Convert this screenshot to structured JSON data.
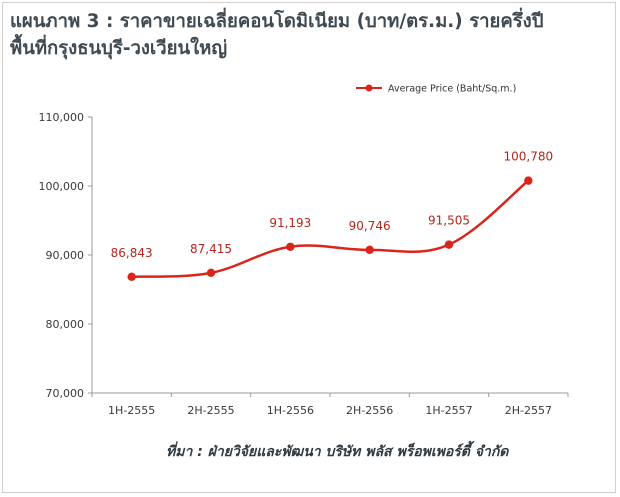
{
  "title_line1": "แผนภาพ 3 : ราคาขายเฉลี่ยคอนโดมิเนียม (บาท/ตร.ม.) รายครึ่งปี",
  "title_line2": "พื้นที่กรุงธนบุรี-วงเวียนใหญ่",
  "source": "ที่มา : ฝ่ายวิจัยและพัฒนา บริษัท พลัส พร็อพเพอร์ตี้ จำกัด",
  "chart_data": {
    "type": "line",
    "categories": [
      "1H-2555",
      "2H-2555",
      "1H-2556",
      "2H-2556",
      "1H-2557",
      "2H-2557"
    ],
    "series": [
      {
        "name": "Average Price (Baht/Sq.m.)",
        "values": [
          86843,
          87415,
          91193,
          90746,
          91505,
          100780
        ],
        "labels": [
          "86,843",
          "87,415",
          "91,193",
          "90,746",
          "91,505",
          "100,780"
        ],
        "color": "#d9261c"
      }
    ],
    "ylim": [
      70000,
      110000
    ],
    "yticks": [
      70000,
      80000,
      90000,
      100000,
      110000
    ],
    "ytick_labels": [
      "70,000",
      "80,000",
      "90,000",
      "100,000",
      "110,000"
    ],
    "legend": "top-right",
    "grid": false
  }
}
